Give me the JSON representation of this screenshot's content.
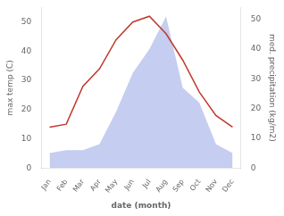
{
  "chart_data": {
    "type": "line",
    "xlabel": "date (month)",
    "ylabel": "max temp (C)",
    "y2label": "med. precipitation (kg/m2)",
    "categories": [
      "Jan",
      "Feb",
      "Mar",
      "Apr",
      "May",
      "Jun",
      "Jul",
      "Aug",
      "Sep",
      "Oct",
      "Nov",
      "Dec"
    ],
    "series": [
      {
        "type": "area",
        "color": "#c5cdf0",
        "axis": "y2",
        "values": [
          5,
          6,
          6,
          8,
          19,
          32,
          40,
          51,
          27,
          22,
          8,
          5
        ]
      },
      {
        "type": "line",
        "color": "#c0392b",
        "values": [
          14,
          15,
          28,
          34,
          44,
          50,
          52,
          46,
          37,
          26,
          18,
          14
        ]
      }
    ],
    "ylim": [
      0,
      55
    ],
    "yticks": [
      0,
      10,
      20,
      30,
      40,
      50
    ],
    "y2lim": [
      0,
      54
    ],
    "y2ticks": [
      0,
      10,
      20,
      30,
      40,
      50
    ],
    "grid": false
  }
}
